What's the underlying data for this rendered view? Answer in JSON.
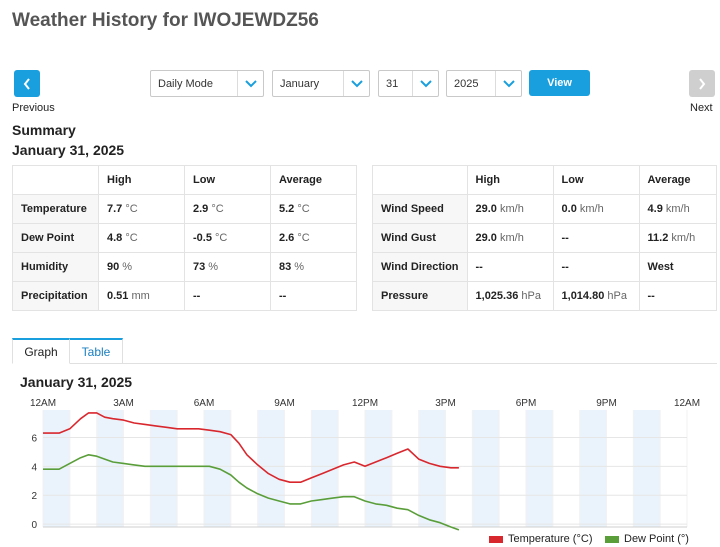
{
  "page": {
    "title": "Weather History for IWOJEWDZ56"
  },
  "navigation": {
    "previous_label": "Previous",
    "next_label": "Next",
    "mode": "Daily Mode",
    "month": "January",
    "day": "31",
    "year": "2025",
    "view_label": "View"
  },
  "summary": {
    "title": "Summary",
    "date": "January 31, 2025",
    "columns": [
      "High",
      "Low",
      "Average"
    ],
    "left_rows": [
      {
        "label": "Temperature",
        "high": "7.7",
        "high_unit": "°C",
        "low": "2.9",
        "low_unit": "°C",
        "avg": "5.2",
        "avg_unit": "°C"
      },
      {
        "label": "Dew Point",
        "high": "4.8",
        "high_unit": "°C",
        "low": "-0.5",
        "low_unit": "°C",
        "avg": "2.6",
        "avg_unit": "°C"
      },
      {
        "label": "Humidity",
        "high": "90",
        "high_unit": "%",
        "low": "73",
        "low_unit": "%",
        "avg": "83",
        "avg_unit": "%"
      },
      {
        "label": "Precipitation",
        "high": "0.51",
        "high_unit": "mm",
        "low": "--",
        "low_unit": "",
        "avg": "--",
        "avg_unit": ""
      }
    ],
    "right_rows": [
      {
        "label": "Wind Speed",
        "high": "29.0",
        "high_unit": "km/h",
        "low": "0.0",
        "low_unit": "km/h",
        "avg": "4.9",
        "avg_unit": "km/h"
      },
      {
        "label": "Wind Gust",
        "high": "29.0",
        "high_unit": "km/h",
        "low": "--",
        "low_unit": "",
        "avg": "11.2",
        "avg_unit": "km/h"
      },
      {
        "label": "Wind Direction",
        "high": "--",
        "high_unit": "",
        "low": "--",
        "low_unit": "",
        "avg": "West",
        "avg_unit": ""
      },
      {
        "label": "Pressure",
        "high": "1,025.36",
        "high_unit": "hPa",
        "low": "1,014.80",
        "low_unit": "hPa",
        "avg": "--",
        "avg_unit": ""
      }
    ]
  },
  "tabs": {
    "graph_label": "Graph",
    "table_label": "Table",
    "active": "Graph"
  },
  "graph": {
    "date": "January 31, 2025"
  },
  "colors": {
    "accent": "#1a9fde",
    "temperature": "#d9272e",
    "dew_point": "#5a9e3a",
    "band": "#eaf3fb"
  },
  "chart_data": {
    "type": "line",
    "x_ticks": [
      "12AM",
      "3AM",
      "6AM",
      "9AM",
      "12PM",
      "3PM",
      "6PM",
      "9PM",
      "12AM"
    ],
    "y_ticks": [
      0,
      2,
      4,
      6
    ],
    "xlim": [
      0,
      24
    ],
    "ylim": [
      -0.2,
      7.9
    ],
    "series": [
      {
        "name": "Temperature (°C)",
        "x": [
          0,
          0.6,
          1.0,
          1.4,
          1.7,
          2.0,
          2.3,
          2.6,
          3.0,
          3.4,
          3.8,
          4.2,
          4.6,
          5.0,
          5.4,
          5.8,
          6.2,
          6.6,
          7.0,
          7.3,
          7.6,
          8.0,
          8.4,
          8.8,
          9.2,
          9.6,
          10.0,
          10.4,
          10.8,
          11.2,
          11.6,
          12.0,
          12.4,
          12.8,
          13.2,
          13.6,
          14.0,
          14.4,
          14.8,
          15.2,
          15.5
        ],
        "y": [
          6.3,
          6.3,
          6.6,
          7.3,
          7.7,
          7.7,
          7.4,
          7.3,
          7.2,
          7.0,
          6.9,
          6.8,
          6.7,
          6.6,
          6.6,
          6.6,
          6.5,
          6.4,
          6.2,
          5.6,
          4.8,
          4.1,
          3.5,
          3.1,
          2.9,
          2.9,
          3.2,
          3.5,
          3.8,
          4.1,
          4.3,
          4.0,
          4.3,
          4.6,
          4.9,
          5.2,
          4.5,
          4.2,
          4.0,
          3.9,
          3.9
        ]
      },
      {
        "name": "Dew Point (°)",
        "x": [
          0,
          0.6,
          1.0,
          1.4,
          1.7,
          2.0,
          2.3,
          2.6,
          3.0,
          3.4,
          3.8,
          4.2,
          4.6,
          5.0,
          5.4,
          5.8,
          6.2,
          6.6,
          7.0,
          7.3,
          7.6,
          8.0,
          8.4,
          8.8,
          9.2,
          9.6,
          10.0,
          10.4,
          10.8,
          11.2,
          11.6,
          12.0,
          12.4,
          12.8,
          13.2,
          13.6,
          14.0,
          14.4,
          14.8,
          15.2,
          15.5
        ],
        "y": [
          3.8,
          3.8,
          4.2,
          4.6,
          4.8,
          4.7,
          4.5,
          4.3,
          4.2,
          4.1,
          4.0,
          4.0,
          4.0,
          4.0,
          4.0,
          4.0,
          4.0,
          3.8,
          3.4,
          2.9,
          2.5,
          2.1,
          1.8,
          1.6,
          1.4,
          1.4,
          1.6,
          1.7,
          1.8,
          1.9,
          1.9,
          1.6,
          1.4,
          1.3,
          1.1,
          1.0,
          0.6,
          0.3,
          0.1,
          -0.2,
          -0.4
        ]
      }
    ],
    "legend_position": "bottom-right",
    "grid": true
  }
}
